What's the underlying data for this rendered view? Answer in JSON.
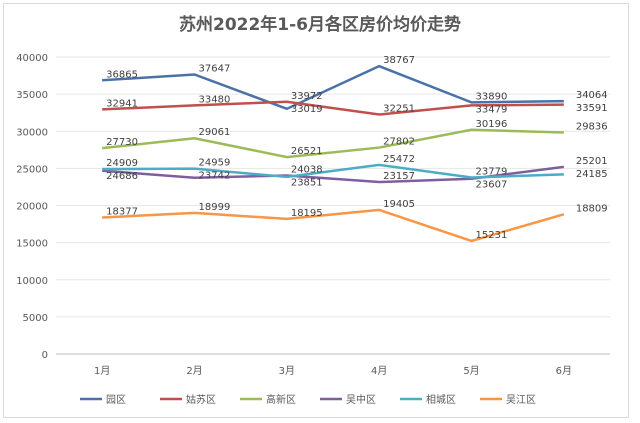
{
  "chart_data": {
    "type": "line",
    "title": "苏州2022年1-6月各区房价均价走势",
    "categories": [
      "1月",
      "2月",
      "3月",
      "4月",
      "5月",
      "6月"
    ],
    "ylim": [
      0,
      40000
    ],
    "yticks": [
      "0",
      "5000",
      "10000",
      "15000",
      "20000",
      "25000",
      "30000",
      "35000",
      "40000"
    ],
    "ytick_values": [
      0,
      5000,
      10000,
      15000,
      20000,
      25000,
      30000,
      35000,
      40000
    ],
    "grid": true,
    "legend": "bottom",
    "series": [
      {
        "name": "园区",
        "color": "#4a72a8",
        "values": [
          36865,
          37647,
          33019,
          38767,
          33890,
          34064
        ]
      },
      {
        "name": "姑苏区",
        "color": "#c0504d",
        "values": [
          32941,
          33480,
          33972,
          32251,
          33479,
          33591
        ]
      },
      {
        "name": "高新区",
        "color": "#9bbb59",
        "values": [
          27730,
          29061,
          26521,
          27802,
          30196,
          29836
        ]
      },
      {
        "name": "吴中区",
        "color": "#7d5fa0",
        "values": [
          24686,
          23742,
          24038,
          23157,
          23607,
          25201
        ]
      },
      {
        "name": "相城区",
        "color": "#4bacc6",
        "values": [
          24909,
          24959,
          23851,
          25472,
          23779,
          24185
        ]
      },
      {
        "name": "吴江区",
        "color": "#f79646",
        "values": [
          18377,
          18999,
          18195,
          19405,
          15231,
          18809
        ]
      }
    ]
  }
}
